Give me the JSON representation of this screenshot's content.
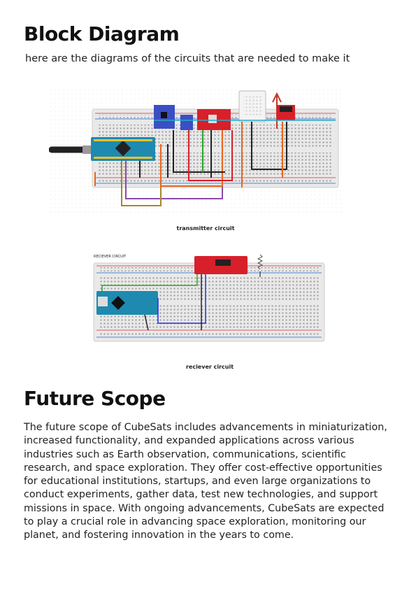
{
  "block_diagram": {
    "title": "Block Diagram",
    "intro": "here are the diagrams of the circuits that are needed to make it",
    "transmitter_caption": "transmitter circuit",
    "receiver_caption": "reciever circuit",
    "receiver_label": "RECIEVER CIRCUIT"
  },
  "future_scope": {
    "title": "Future Scope",
    "body": "The future scope of CubeSats includes advancements in miniaturization, increased functionality, and expanded applications across various industries such as Earth observation, communications, scientific research, and space exploration. They offer cost-effective opportunities for educational institutions, startups, and even large organizations to conduct experiments, gather data, test new technologies, and support missions in space. With ongoing advancements, CubeSats are expected to play a crucial role in advancing space exploration, monitoring our planet, and fostering innovation in the years to come."
  },
  "colors": {
    "arduino": "#1e8ab0",
    "rf_module": "#d7202a",
    "sensor_blue": "#3a4fc4",
    "wire_orange": "#e8651a",
    "wire_green": "#28a828",
    "wire_purple": "#8a4aa8",
    "wire_blue": "#2233dd"
  }
}
